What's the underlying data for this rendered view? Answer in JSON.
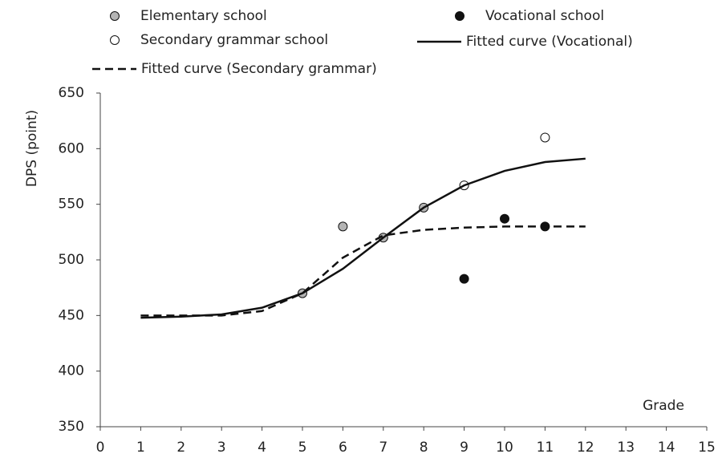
{
  "chart_data": {
    "type": "scatter",
    "xlabel": "Grade",
    "ylabel": "DPS (point)",
    "xlim": [
      0,
      15
    ],
    "xticks": [
      0,
      1,
      2,
      3,
      4,
      5,
      6,
      7,
      8,
      9,
      10,
      11,
      12,
      13,
      14,
      15
    ],
    "ylim": [
      350,
      650
    ],
    "yticks": [
      350,
      400,
      450,
      500,
      550,
      600,
      650
    ],
    "grid": false,
    "series": [
      {
        "name": "Elementary school",
        "mode": "markers",
        "color": "#b4b4b4",
        "x": [
          5,
          6,
          7,
          8
        ],
        "values": [
          470,
          530,
          520,
          547
        ]
      },
      {
        "name": "Vocational school",
        "mode": "markers",
        "color": "#111111",
        "x": [
          9,
          10,
          11
        ],
        "values": [
          483,
          537,
          530
        ]
      },
      {
        "name": "Secondary grammar school",
        "mode": "markers",
        "color": "#ffffff",
        "x": [
          9,
          11
        ],
        "values": [
          567,
          610
        ]
      },
      {
        "name": "Fitted curve (Vocational)",
        "mode": "line",
        "dash": false,
        "color": "#111111",
        "x": [
          1,
          2,
          3,
          4,
          5,
          6,
          7,
          8,
          9,
          10,
          11,
          12
        ],
        "values": [
          448,
          449,
          451,
          457,
          470,
          492,
          520,
          547,
          567,
          580,
          588,
          591
        ]
      },
      {
        "name": "Fitted curve (Secondary grammar)",
        "mode": "line",
        "dash": true,
        "color": "#111111",
        "x": [
          1,
          2,
          3,
          4,
          5,
          6,
          7,
          8,
          9,
          10,
          11,
          12
        ],
        "values": [
          450,
          450,
          450,
          454,
          470,
          502,
          522,
          527,
          529,
          530,
          530,
          530
        ]
      }
    ]
  }
}
